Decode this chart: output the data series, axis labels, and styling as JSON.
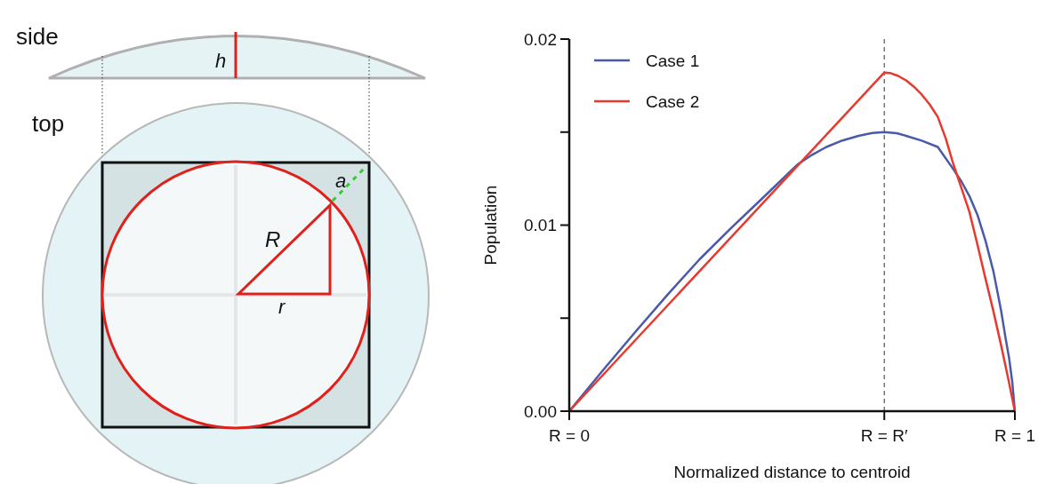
{
  "chart_data": [
    {
      "type": "other",
      "annotations": [
        "side",
        "top",
        "h",
        "a",
        "R",
        "r"
      ]
    },
    {
      "type": "line",
      "xlabel": "Normalized distance to centroid",
      "ylabel": "Population",
      "xlim": [
        0,
        1
      ],
      "ylim": [
        0,
        0.02
      ],
      "xticks": [
        {
          "value": 0,
          "label": "R = 0"
        },
        {
          "value": 0.707,
          "label": "R = R′"
        },
        {
          "value": 1,
          "label": "R = 1"
        }
      ],
      "yticks": [
        {
          "value": 0,
          "label": "0.00"
        },
        {
          "value": 0.005,
          "label": null
        },
        {
          "value": 0.01,
          "label": "0.01"
        },
        {
          "value": 0.015,
          "label": null
        },
        {
          "value": 0.02,
          "label": "0.02"
        }
      ],
      "ref_lines": [
        {
          "axis": "x",
          "value": 0.707,
          "color": "#555555",
          "line_style": "dashed"
        }
      ],
      "legend": "top left",
      "series": [
        {
          "name": "Case 1",
          "color": "#4a5aa8",
          "x": [
            0,
            0.078,
            0.15,
            0.221,
            0.292,
            0.364,
            0.435,
            0.513,
            0.545,
            0.577,
            0.613,
            0.649,
            0.68,
            0.707,
            0.735,
            0.756,
            0.791,
            0.827,
            0.862,
            0.88,
            0.898,
            0.916,
            0.934,
            0.952,
            0.969,
            0.98,
            0.987,
            0.994,
            1
          ],
          "values": [
            0,
            0.00227,
            0.00431,
            0.00627,
            0.00815,
            0.00986,
            0.01148,
            0.01327,
            0.01378,
            0.0142,
            0.01455,
            0.0148,
            0.01495,
            0.015,
            0.01494,
            0.0148,
            0.01454,
            0.0142,
            0.013,
            0.01235,
            0.01156,
            0.01055,
            0.00917,
            0.0075,
            0.00542,
            0.0038,
            0.00286,
            0.0016,
            0
          ]
        },
        {
          "name": "Case 2",
          "color": "#e8392e",
          "x": [
            0,
            0.707,
            0.72,
            0.738,
            0.756,
            0.773,
            0.791,
            0.809,
            0.827,
            0.845,
            0.862,
            0.88,
            0.898,
            0.916,
            0.934,
            0.952,
            0.969,
            0.985,
            1
          ],
          "values": [
            0,
            0.0182,
            0.01818,
            0.01802,
            0.01778,
            0.01745,
            0.01702,
            0.01648,
            0.01582,
            0.01465,
            0.01327,
            0.012,
            0.01071,
            0.00895,
            0.00713,
            0.00535,
            0.00355,
            0.00175,
            0
          ]
        }
      ]
    }
  ]
}
